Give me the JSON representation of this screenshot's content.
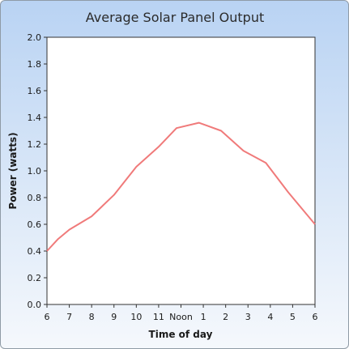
{
  "chart_data": {
    "type": "line",
    "title": "Average Solar Panel Output",
    "xlabel": "Time of day",
    "ylabel": "Power (watts)",
    "categories": [
      "6",
      "7",
      "8",
      "9",
      "10",
      "11",
      "Noon",
      "1",
      "2",
      "3",
      "4",
      "5",
      "6"
    ],
    "x": [
      6,
      7,
      8,
      9,
      10,
      11,
      12,
      13,
      14,
      15,
      16,
      17,
      18
    ],
    "series": [
      {
        "x": [
          6,
          6.5,
          7,
          8,
          9,
          10,
          11,
          11.8,
          12.8,
          13.8,
          14.8,
          15.8,
          16.8,
          18
        ],
        "values": [
          0.4,
          0.49,
          0.56,
          0.66,
          0.82,
          1.03,
          1.18,
          1.32,
          1.36,
          1.3,
          1.15,
          1.06,
          0.84,
          0.6
        ],
        "color": "#f07a7a"
      }
    ],
    "yticks": [
      "0.0",
      "0.2",
      "0.4",
      "0.6",
      "0.8",
      "1.0",
      "1.2",
      "1.4",
      "1.6",
      "1.8",
      "2.0"
    ],
    "ylim": [
      0,
      2.0
    ],
    "xlim": [
      6,
      18
    ],
    "grid": false,
    "legend": "none"
  }
}
